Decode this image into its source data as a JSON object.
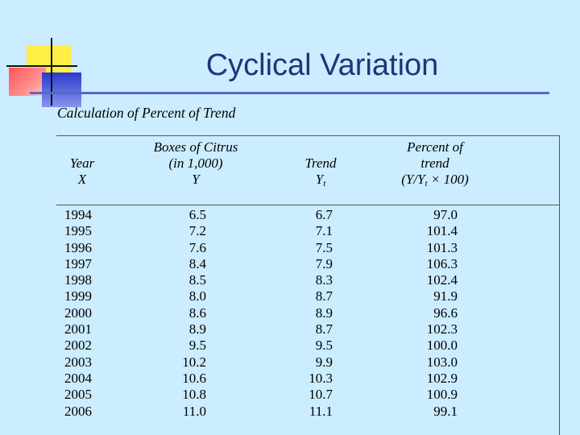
{
  "slide": {
    "title": "Cyclical Variation"
  },
  "table": {
    "caption": "Calculation of Percent of Trend",
    "headers": {
      "year": [
        "Year",
        "X"
      ],
      "boxes": [
        "Boxes of Citrus",
        "(in 1,000)",
        "Y"
      ],
      "trend": [
        "Trend",
        "Y",
        "t"
      ],
      "pct": [
        "Percent of",
        "trend",
        "(Y/Y",
        "t",
        " × 100)"
      ]
    },
    "rows": [
      {
        "year": "1994",
        "boxes": "6.5",
        "trend": "6.7",
        "pct": "97.0"
      },
      {
        "year": "1995",
        "boxes": "7.2",
        "trend": "7.1",
        "pct": "101.4"
      },
      {
        "year": "1996",
        "boxes": "7.6",
        "trend": "7.5",
        "pct": "101.3"
      },
      {
        "year": "1997",
        "boxes": "8.4",
        "trend": "7.9",
        "pct": "106.3"
      },
      {
        "year": "1998",
        "boxes": "8.5",
        "trend": "8.3",
        "pct": "102.4"
      },
      {
        "year": "1999",
        "boxes": "8.0",
        "trend": "8.7",
        "pct": "91.9"
      },
      {
        "year": "2000",
        "boxes": "8.6",
        "trend": "8.9",
        "pct": "96.6"
      },
      {
        "year": "2001",
        "boxes": "8.9",
        "trend": "8.7",
        "pct": "102.3"
      },
      {
        "year": "2002",
        "boxes": "9.5",
        "trend": "9.5",
        "pct": "100.0"
      },
      {
        "year": "2003",
        "boxes": "10.2",
        "trend": "9.9",
        "pct": "103.0"
      },
      {
        "year": "2004",
        "boxes": "10.6",
        "trend": "10.3",
        "pct": "102.9"
      },
      {
        "year": "2005",
        "boxes": "10.8",
        "trend": "10.7",
        "pct": "100.9"
      },
      {
        "year": "2006",
        "boxes": "11.0",
        "trend": "11.1",
        "pct": "99.1"
      }
    ]
  },
  "colors": {
    "background": "#ccecff",
    "title": "#22337a",
    "rule": "#5868c8"
  }
}
